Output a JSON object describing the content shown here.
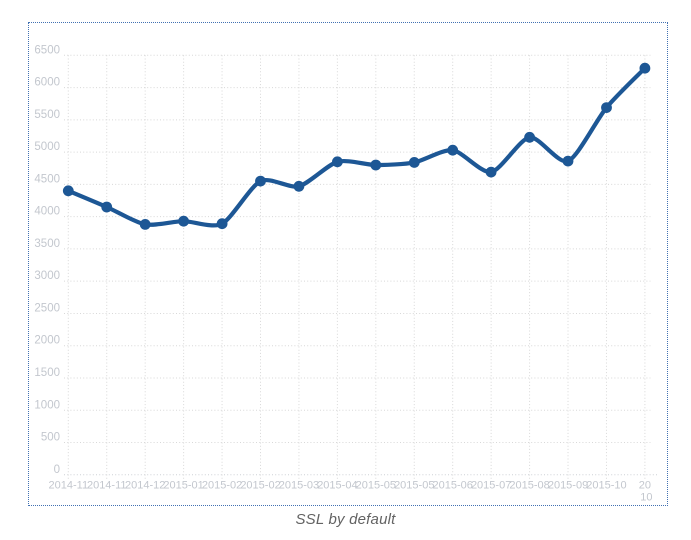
{
  "figure": {
    "caption": "SSL by default"
  },
  "colors": {
    "line": "#1d5795",
    "point": "#1d5795",
    "grid": "#d8d8d8",
    "axis_bottom": "#ced1d6",
    "tick_label": "#c3c7ce",
    "border": "#4271b2",
    "caption": "#636363"
  },
  "chart_data": {
    "type": "line",
    "title": "SSL by default",
    "xlabel": "",
    "ylabel": "",
    "categories": [
      "2014-11",
      "2014-11",
      "2014-12",
      "2015-01",
      "2015-02",
      "2015-02",
      "2015-03",
      "2015-04",
      "2015-05",
      "2015-05",
      "2015-06",
      "2015-07",
      "2015-08",
      "2015-09",
      "2015-10",
      "20\n10"
    ],
    "series": [
      {
        "name": "SSL by default",
        "values": [
          4400,
          4150,
          3880,
          3930,
          3890,
          4550,
          4470,
          4850,
          4800,
          4840,
          5030,
          4690,
          5230,
          4860,
          5690,
          6300
        ]
      }
    ],
    "y_ticks": [
      0,
      500,
      1000,
      1500,
      2000,
      2500,
      3000,
      3500,
      4000,
      4500,
      5000,
      5500,
      6000,
      6500
    ],
    "ylim": [
      0,
      6500
    ],
    "grid": "dotted",
    "legend": "none",
    "marker": "circle",
    "smooth": true
  }
}
